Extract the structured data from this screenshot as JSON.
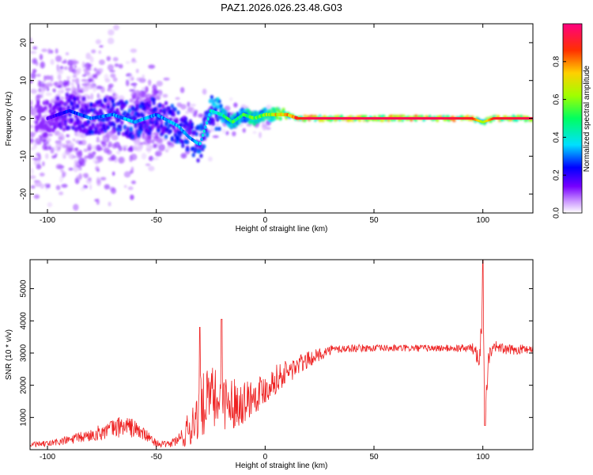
{
  "title": "PAZ1.2026.026.23.48.G03",
  "chart_data": [
    {
      "type": "heatmap",
      "xlabel": "Height of straight line (km)",
      "ylabel": "Frequency (Hz)",
      "xlim": [
        -108,
        123
      ],
      "ylim": [
        -25,
        25
      ],
      "xticks": [
        -100,
        -50,
        0,
        50,
        100
      ],
      "xtick_labels": [
        "-100",
        "-50",
        "0",
        "50",
        "100"
      ],
      "yticks": [
        -20,
        -10,
        0,
        10,
        20
      ],
      "ytick_labels": [
        "-20",
        "-10",
        "0",
        "10",
        "20"
      ],
      "colorbar": {
        "label": "Normalized spectral amplitude",
        "range": [
          0,
          1
        ],
        "ticks": [
          0,
          0.2,
          0.4,
          0.6,
          0.8
        ],
        "tick_labels": [
          "0.0",
          "0.2",
          "0.4",
          "0.6",
          "0.8"
        ]
      },
      "ridge": {
        "x": [
          -100,
          -90,
          -80,
          -70,
          -60,
          -50,
          -40,
          -35,
          -30,
          -25,
          -20,
          -15,
          -10,
          -5,
          0,
          5,
          10,
          15,
          20,
          50,
          80,
          95,
          100,
          105,
          123
        ],
        "freq": [
          0,
          2,
          0,
          1,
          -1,
          1,
          -2,
          -5,
          -7,
          2,
          1,
          -1,
          1,
          0,
          1,
          1,
          1,
          0,
          0,
          0,
          0,
          0,
          -1,
          0,
          0
        ],
        "amplitude": [
          0.15,
          0.25,
          0.3,
          0.3,
          0.35,
          0.3,
          0.35,
          0.3,
          0.35,
          0.4,
          0.45,
          0.5,
          0.5,
          0.55,
          0.6,
          0.7,
          0.75,
          0.85,
          0.95,
          0.95,
          0.95,
          0.9,
          0.6,
          0.9,
          0.95
        ]
      }
    },
    {
      "type": "line",
      "xlabel": "Height of straight line (km)",
      "ylabel": "SNR (10 * v/v)",
      "xlim": [
        -108,
        123
      ],
      "ylim": [
        0,
        5900
      ],
      "xticks": [
        -100,
        -50,
        0,
        50,
        100
      ],
      "xtick_labels": [
        "-100",
        "-50",
        "0",
        "50",
        "100"
      ],
      "yticks": [
        1000,
        2000,
        3000,
        4000,
        5000
      ],
      "ytick_labels": [
        "1000",
        "2000",
        "3000",
        "4000",
        "5000"
      ],
      "color": "#ee2222",
      "envelope": {
        "x": [
          -108,
          -100,
          -90,
          -80,
          -70,
          -65,
          -60,
          -55,
          -50,
          -45,
          -40,
          -35,
          -30,
          -25,
          -20,
          -15,
          -10,
          -5,
          0,
          5,
          10,
          15,
          20,
          25,
          30,
          40,
          50,
          60,
          70,
          80,
          90,
          95,
          98,
          100,
          101,
          103,
          105,
          110,
          115,
          123
        ],
        "mean": [
          150,
          180,
          300,
          450,
          650,
          750,
          650,
          450,
          200,
          150,
          300,
          600,
          1300,
          1600,
          1500,
          1450,
          1500,
          1700,
          1900,
          2200,
          2400,
          2600,
          2800,
          2950,
          3100,
          3150,
          3150,
          3150,
          3150,
          3150,
          3150,
          3150,
          3000,
          4000,
          1500,
          3000,
          3250,
          3100,
          3100,
          3150
        ],
        "noise": [
          80,
          100,
          150,
          200,
          300,
          350,
          300,
          200,
          100,
          100,
          200,
          600,
          1000,
          1000,
          900,
          800,
          700,
          600,
          500,
          450,
          400,
          350,
          250,
          200,
          150,
          120,
          110,
          110,
          110,
          110,
          120,
          150,
          400,
          1500,
          700,
          300,
          180,
          160,
          150,
          150
        ]
      },
      "peaks": [
        {
          "x": -20,
          "y": 4050
        },
        {
          "x": -30,
          "y": 3800
        },
        {
          "x": 100,
          "y": 5900
        },
        {
          "x": 101,
          "y": 750
        }
      ]
    }
  ]
}
